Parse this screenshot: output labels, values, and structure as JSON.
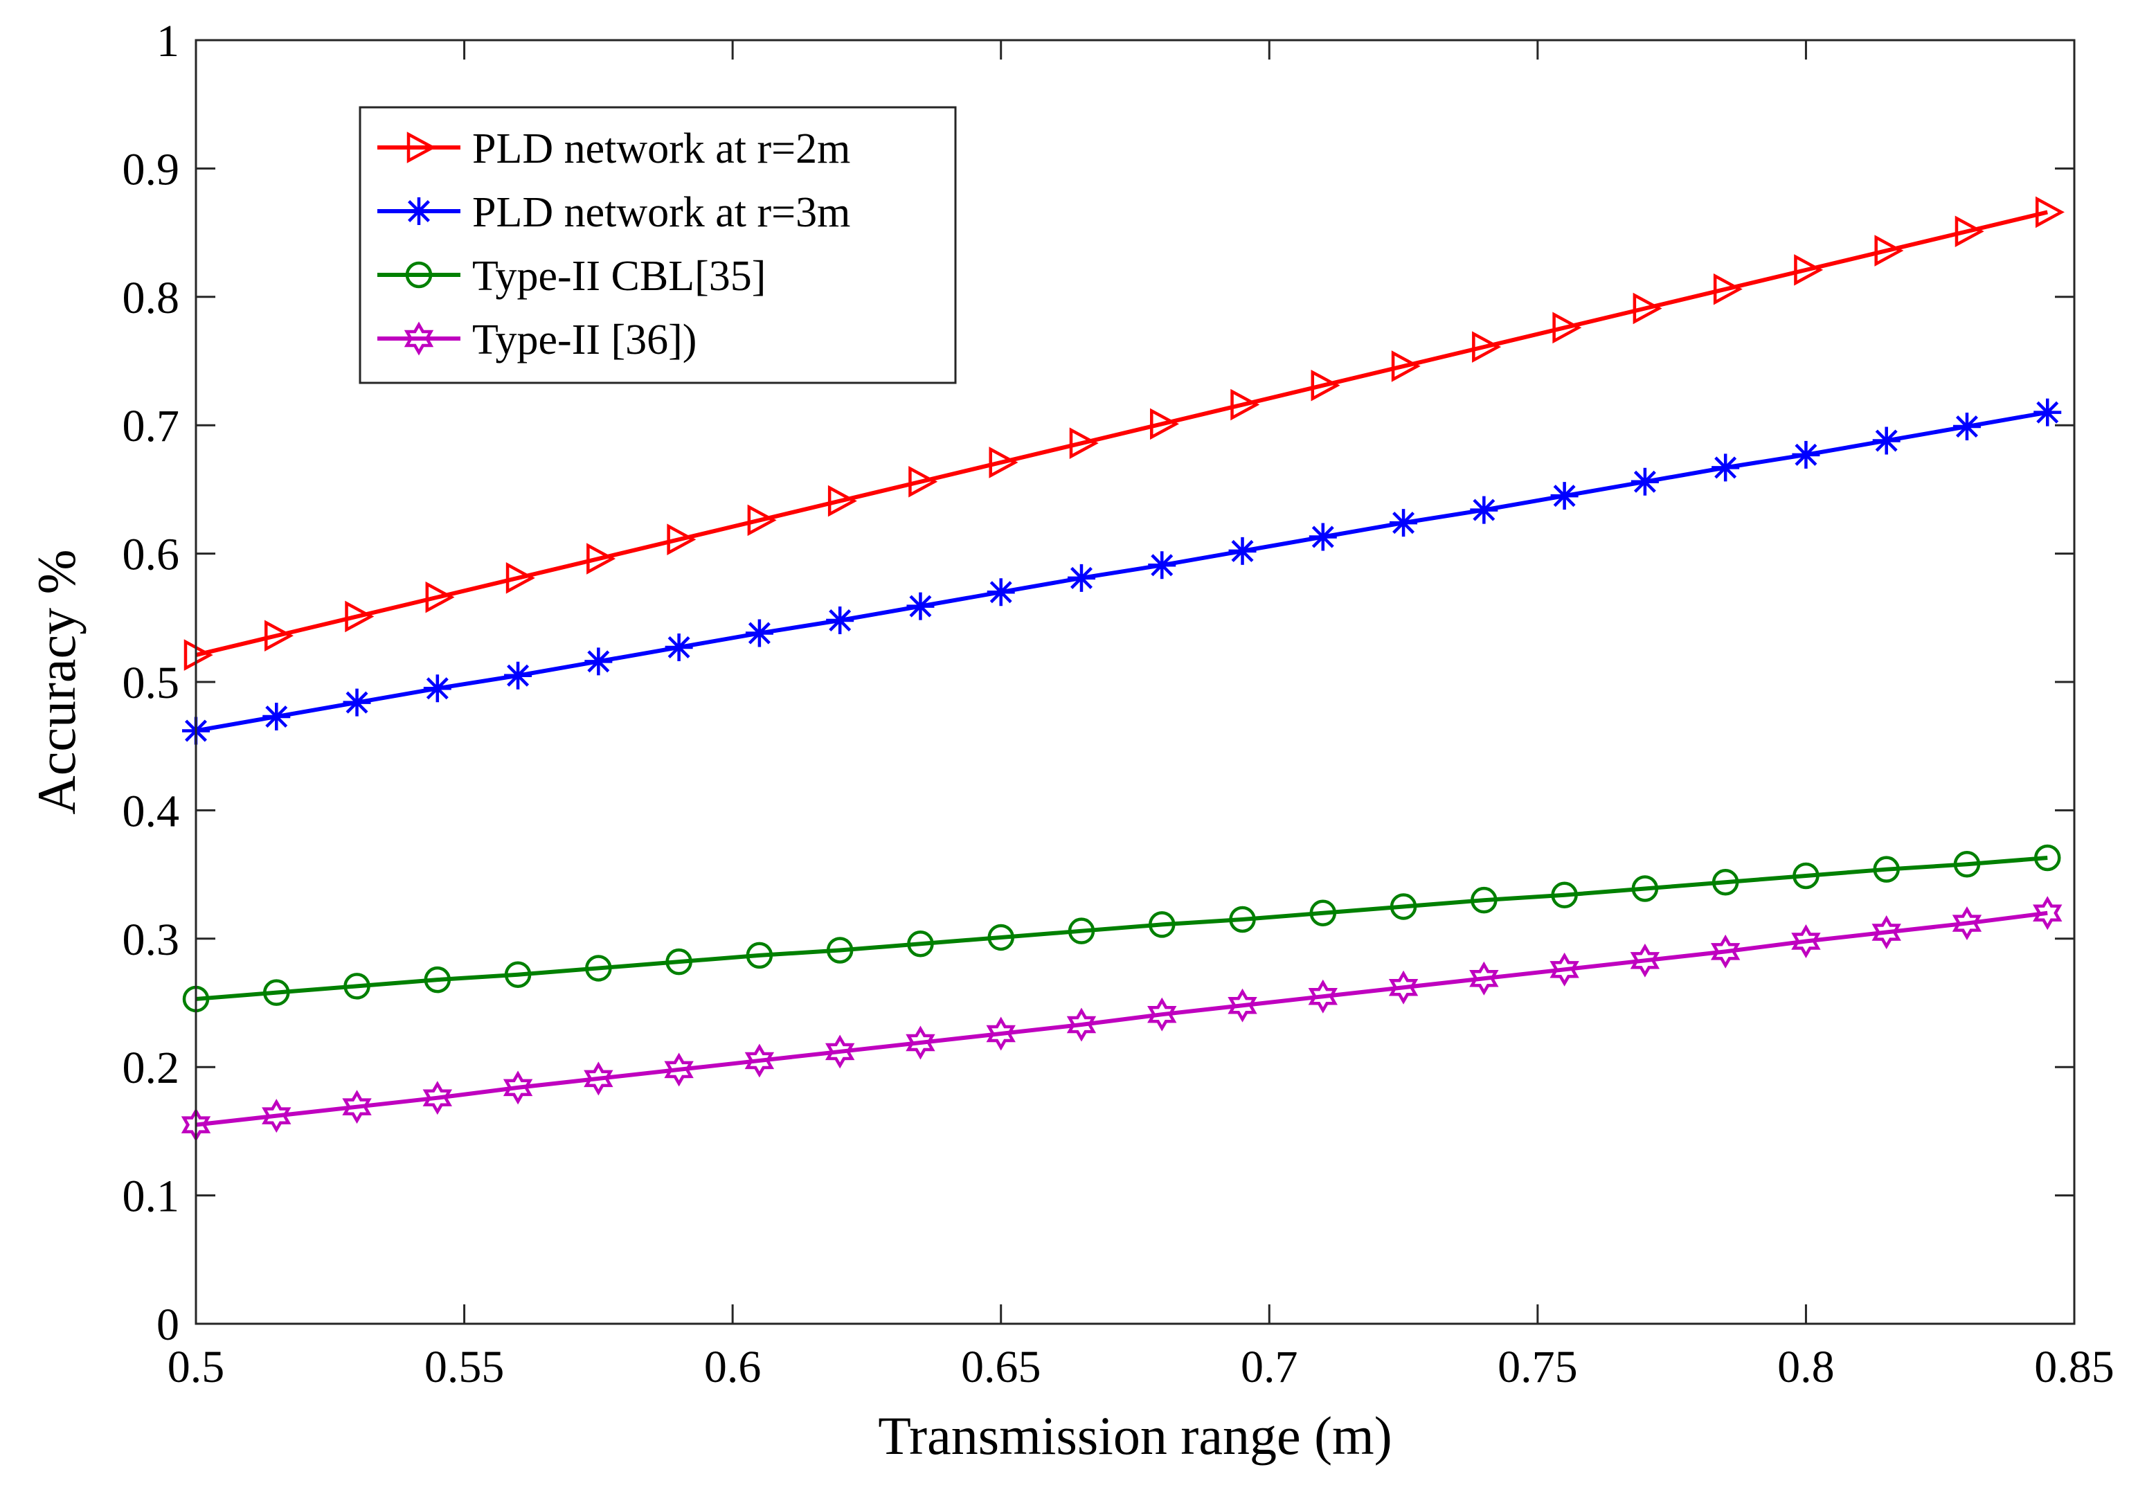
{
  "chart_data": {
    "type": "line",
    "title": "",
    "xlabel": "Transmission range (m)",
    "ylabel": "Accuracy %",
    "xlim": [
      0.5,
      0.85
    ],
    "ylim": [
      0,
      1
    ],
    "xticks": [
      0.5,
      0.55,
      0.6,
      0.65,
      0.7,
      0.75,
      0.8,
      0.85
    ],
    "xtick_labels": [
      "0.5",
      "0.55",
      "0.6",
      "0.65",
      "0.7",
      "0.75",
      "0.8",
      "0.85"
    ],
    "yticks": [
      0,
      0.1,
      0.2,
      0.3,
      0.4,
      0.5,
      0.6,
      0.7,
      0.8,
      0.9,
      1
    ],
    "ytick_labels": [
      "0",
      "0.1",
      "0.2",
      "0.3",
      "0.4",
      "0.5",
      "0.6",
      "0.7",
      "0.8",
      "0.9",
      "1"
    ],
    "grid": false,
    "legend_position": "top-left",
    "x": [
      0.5,
      0.515,
      0.53,
      0.545,
      0.56,
      0.575,
      0.59,
      0.605,
      0.62,
      0.635,
      0.65,
      0.665,
      0.68,
      0.695,
      0.71,
      0.725,
      0.74,
      0.755,
      0.77,
      0.785,
      0.8,
      0.815,
      0.83,
      0.845
    ],
    "series": [
      {
        "name": "PLD network at r=2m",
        "color": "#ff0000",
        "marker": "triangle-right",
        "values": [
          0.521,
          0.536,
          0.551,
          0.566,
          0.581,
          0.596,
          0.611,
          0.626,
          0.641,
          0.656,
          0.671,
          0.686,
          0.701,
          0.716,
          0.731,
          0.746,
          0.761,
          0.776,
          0.791,
          0.806,
          0.821,
          0.836,
          0.851,
          0.866
        ]
      },
      {
        "name": "PLD network at r=3m",
        "color": "#0000ff",
        "marker": "asterisk",
        "values": [
          0.462,
          0.473,
          0.484,
          0.495,
          0.505,
          0.516,
          0.527,
          0.538,
          0.548,
          0.559,
          0.57,
          0.581,
          0.591,
          0.602,
          0.613,
          0.624,
          0.634,
          0.645,
          0.656,
          0.667,
          0.677,
          0.688,
          0.699,
          0.71
        ]
      },
      {
        "name": "Type-II CBL[35]",
        "color": "#008000",
        "marker": "circle",
        "values": [
          0.253,
          0.258,
          0.263,
          0.268,
          0.272,
          0.277,
          0.282,
          0.287,
          0.291,
          0.296,
          0.301,
          0.306,
          0.311,
          0.315,
          0.32,
          0.325,
          0.33,
          0.334,
          0.339,
          0.344,
          0.349,
          0.354,
          0.358,
          0.363
        ]
      },
      {
        "name": "Type-II [36])",
        "color": "#bf00bf",
        "marker": "hexagram",
        "values": [
          0.155,
          0.162,
          0.169,
          0.176,
          0.184,
          0.191,
          0.198,
          0.205,
          0.212,
          0.219,
          0.226,
          0.233,
          0.241,
          0.248,
          0.255,
          0.262,
          0.269,
          0.276,
          0.283,
          0.29,
          0.298,
          0.305,
          0.312,
          0.32
        ]
      }
    ]
  }
}
